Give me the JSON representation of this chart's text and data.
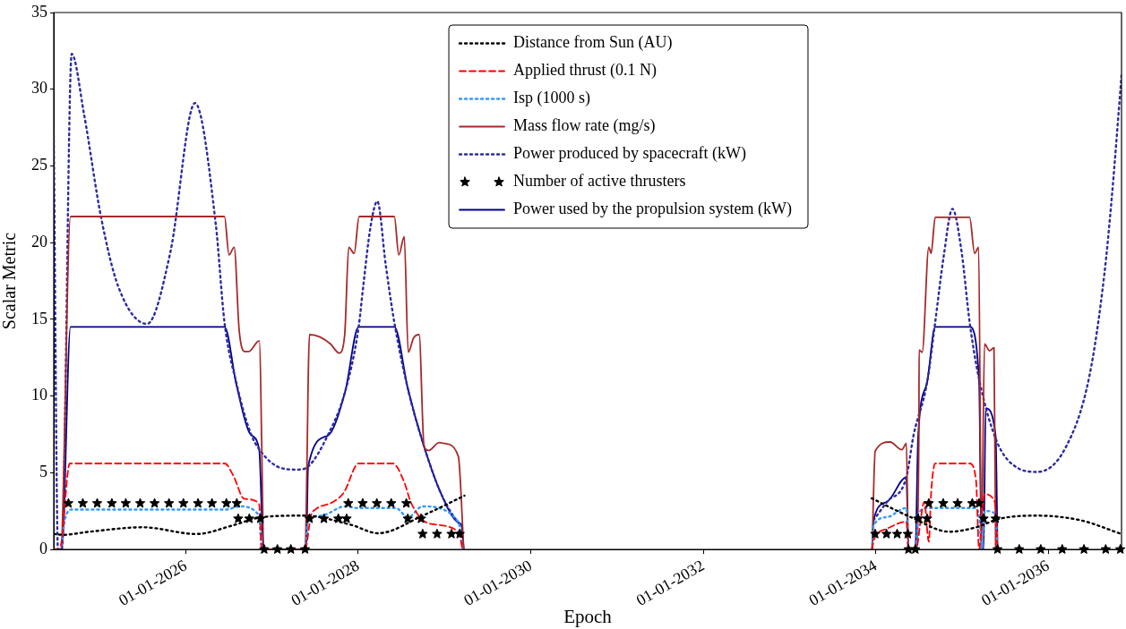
{
  "chart_data": {
    "type": "line",
    "xlabel": "Epoch",
    "ylabel": "Scalar Metric",
    "xlim": [
      "2024-06-21",
      "2036-11-06"
    ],
    "xticks": [
      {
        "value": "2026-01-01",
        "label": "01-01-2026"
      },
      {
        "value": "2028-01-01",
        "label": "01-01-2028"
      },
      {
        "value": "2030-01-01",
        "label": "01-01-2030"
      },
      {
        "value": "2032-01-01",
        "label": "01-01-2032"
      },
      {
        "value": "2034-01-01",
        "label": "01-01-2034"
      },
      {
        "value": "2036-01-01",
        "label": "01-01-2036"
      }
    ],
    "ylim": [
      0,
      35
    ],
    "yticks": [
      0,
      5,
      10,
      15,
      20,
      25,
      30,
      35
    ],
    "grid": false,
    "legend": "top",
    "series": [
      {
        "name": "Distance from Sun (AU)",
        "color": "#000000",
        "line_style": "dotted",
        "marker": "none",
        "x": [
          "2024-06-21",
          "2024-07-30",
          "2024-11-19",
          "2025-07-03",
          "2026-02-15",
          "2026-07-16",
          "2026-11-19",
          "2027-05-15",
          "2027-12-02",
          "2028-03-25",
          "2028-09-30",
          "2029-03-26",
          "2031-07-01",
          "2033-12-14",
          "2034-05-29",
          "2034-11-09",
          "2035-03-01",
          "2035-06-10",
          "2035-11-09",
          "2036-05-16",
          "2036-11-06"
        ],
        "values": [
          1.0,
          0.95,
          1.15,
          1.44,
          1.0,
          1.55,
          2.1,
          2.2,
          1.6,
          1.05,
          2.2,
          3.5,
          null,
          3.33,
          2.1,
          1.15,
          1.44,
          2.0,
          2.2,
          1.9,
          1.0
        ]
      },
      {
        "name": "Applied thrust (0.1 N)",
        "color": "#ff0000",
        "line_style": "dashed",
        "marker": "none",
        "x": [
          "2024-06-21",
          "2024-07-16",
          "2024-08-28",
          "2026-06-15",
          "2026-07-23",
          "2026-09-05",
          "2026-11-07",
          "2026-11-19",
          "2027-05-21",
          "2027-06-15",
          "2027-07-04",
          "2027-09-18",
          "2027-11-01",
          "2028-01-03",
          "2028-05-27",
          "2028-07-16",
          "2028-08-10",
          "2028-10-25",
          "2029-02-28",
          "2029-03-18",
          "2031-07-01",
          "2033-12-16",
          "2033-12-22",
          "2034-02-17",
          "2034-05-10",
          "2034-05-19",
          "2034-06-20",
          "2034-06-29",
          "2034-07-06",
          "2034-07-25",
          "2034-08-13",
          "2034-08-23",
          "2034-09-09",
          "2035-02-02",
          "2035-03-01",
          "2035-03-14",
          "2035-04-06",
          "2035-05-19",
          "2035-05-31"
        ],
        "values": [
          0,
          0,
          5.6,
          5.6,
          4.75,
          3.3,
          3.0,
          0,
          0,
          2.2,
          2.6,
          3.1,
          3.7,
          5.6,
          5.6,
          4.3,
          3.1,
          1.7,
          1.15,
          0,
          null,
          0,
          0.56,
          1.35,
          1.8,
          0,
          0,
          0.6,
          1.5,
          3.1,
          0.5,
          3.7,
          5.6,
          5.6,
          4.5,
          0,
          3.6,
          3.1,
          0
        ]
      },
      {
        "name": "Isp (1000 s)",
        "color": "#3399ff",
        "line_style": "dotted",
        "marker": "none",
        "x": [
          "2024-06-21",
          "2024-07-18",
          "2024-08-09",
          "2024-09-04",
          "2026-06-21",
          "2026-08-17",
          "2026-11-07",
          "2026-11-19",
          "2027-05-21",
          "2027-06-03",
          "2027-07-29",
          "2027-11-07",
          "2027-12-28",
          "2028-06-08",
          "2028-07-29",
          "2028-09-30",
          "2029-02-28",
          "2029-03-18",
          "2031-07-01",
          "2033-12-16",
          "2033-12-22",
          "2034-02-17",
          "2034-05-10",
          "2034-05-19",
          "2034-06-20",
          "2034-06-29",
          "2034-08-13",
          "2034-10-27",
          "2035-02-17",
          "2035-03-14",
          "2035-03-24",
          "2035-04-08",
          "2035-05-23",
          "2035-05-31"
        ],
        "values": [
          0,
          0,
          2.05,
          2.6,
          2.6,
          2.8,
          2.2,
          0,
          0,
          1.9,
          2.2,
          2.8,
          2.7,
          2.7,
          2.1,
          2.8,
          1.8,
          0,
          null,
          0,
          1.55,
          2.1,
          2.7,
          0,
          0,
          2.3,
          2.7,
          2.7,
          2.7,
          2.3,
          0,
          2.5,
          2.3,
          0
        ]
      },
      {
        "name": "Mass flow rate (mg/s)",
        "color": "#a52a2a",
        "line_style": "solid",
        "marker": "none",
        "x": [
          "2024-06-21",
          "2024-07-20",
          "2024-08-31",
          "2026-06-14",
          "2026-07-03",
          "2026-07-25",
          "2026-08-15",
          "2026-09-07",
          "2026-09-25",
          "2026-11-08",
          "2026-11-29",
          "2027-05-21",
          "2027-06-09",
          "2027-07-23",
          "2027-09-05",
          "2027-10-13",
          "2027-11-05",
          "2027-11-22",
          "2027-12-15",
          "2028-01-05",
          "2028-06-02",
          "2028-06-21",
          "2028-07-14",
          "2028-07-31",
          "2028-08-23",
          "2028-09-15",
          "2028-10-06",
          "2028-10-25",
          "2028-12-09",
          "2029-01-02",
          "2029-02-28",
          "2029-03-23",
          "2031-07-01",
          "2033-12-16",
          "2033-12-29",
          "2034-03-02",
          "2034-04-21",
          "2034-05-10",
          "2034-05-19",
          "2034-06-20",
          "2034-07-02",
          "2034-07-03",
          "2034-07-16",
          "2034-08-13",
          "2034-08-23",
          "2034-09-09",
          "2035-02-02",
          "2035-02-23",
          "2035-03-12",
          "2035-03-24",
          "2035-04-06",
          "2035-04-27",
          "2035-05-16",
          "2035-05-23"
        ],
        "values": [
          0,
          0,
          21.7,
          21.7,
          19.2,
          19.7,
          14.3,
          12.9,
          12.9,
          13.6,
          0,
          0,
          14.0,
          13.85,
          13.4,
          12.8,
          14.0,
          19.7,
          19.3,
          21.7,
          21.7,
          19.2,
          20.4,
          12.85,
          13.8,
          14.0,
          6.7,
          6.45,
          6.96,
          6.9,
          6.06,
          0,
          null,
          0,
          6.4,
          7.0,
          6.5,
          6.9,
          0,
          0,
          7.4,
          13.0,
          12.85,
          19.7,
          19.3,
          21.65,
          21.65,
          19.3,
          19.7,
          0,
          13.4,
          12.95,
          13.15,
          0
        ]
      },
      {
        "name": "Power produced by spacecraft (kW)",
        "color": "#2b2ba0",
        "line_style": "dotted",
        "marker": "none",
        "x": [
          "2024-06-21",
          "2024-07-09",
          "2024-07-25",
          "2024-09-05",
          "2024-10-27",
          "2025-01-08",
          "2025-03-22",
          "2025-07-21",
          "2025-10-28",
          "2026-02-09",
          "2026-05-08",
          "2026-06-14",
          "2026-08-04",
          "2026-10-02",
          "2026-11-14",
          "2027-02-09",
          "2027-04-18",
          "2027-06-03",
          "2027-08-24",
          "2027-11-07",
          "2028-01-03",
          "2028-01-22",
          "2028-02-22",
          "2028-03-22",
          "2028-04-27",
          "2028-06-02",
          "2028-07-29",
          "2028-09-30",
          "2028-12-15",
          "2029-02-28",
          "2029-03-13",
          "2031-07-01",
          "2033-12-22",
          "2034-02-17",
          "2034-05-10",
          "2034-06-09",
          "2034-08-06",
          "2034-09-09",
          "2034-10-15",
          "2034-11-21",
          "2034-12-29",
          "2035-02-02",
          "2035-03-14",
          "2035-05-29",
          "2035-08-25",
          "2035-11-15",
          "2036-03-13",
          "2036-06-23",
          "2036-08-25",
          "2036-09-25",
          "2036-11-06"
        ],
        "values": [
          27.0,
          0,
          0,
          32.3,
          28.4,
          21.6,
          17.1,
          14.7,
          19.4,
          29.1,
          21.2,
          14.8,
          10.8,
          7.6,
          6.4,
          5.3,
          5.2,
          5.4,
          7.4,
          10.3,
          14.5,
          17.1,
          21.0,
          22.7,
          18.5,
          14.8,
          10.5,
          7.0,
          3.7,
          1.75,
          1.6,
          null,
          1.9,
          3.1,
          4.7,
          7.4,
          10.9,
          14.8,
          19.1,
          22.2,
          19.5,
          14.8,
          11.1,
          7.0,
          5.3,
          5.05,
          6.6,
          11.3,
          17.9,
          22.8,
          30.9
        ]
      },
      {
        "name": "Number of active thrusters",
        "color": "#000000",
        "type": "scatter",
        "marker": "star",
        "x": [
          "2024-08-22",
          "2024-10-22",
          "2024-12-22",
          "2025-02-22",
          "2025-04-22",
          "2025-06-22",
          "2025-08-22",
          "2025-10-22",
          "2025-12-22",
          "2026-02-22",
          "2026-04-22",
          "2026-06-22",
          "2026-08-05",
          "2026-08-11",
          "2026-09-27",
          "2026-11-13",
          "2026-11-29",
          "2027-01-24",
          "2027-03-22",
          "2027-05-21",
          "2027-06-09",
          "2027-08-09",
          "2027-10-09",
          "2027-11-13",
          "2027-11-20",
          "2028-01-20",
          "2028-03-20",
          "2028-05-20",
          "2028-07-23",
          "2028-07-29",
          "2028-09-23",
          "2028-09-30",
          "2028-11-30",
          "2029-01-30",
          "2029-03-06",
          "2033-12-29",
          "2034-02-15",
          "2034-04-01",
          "2034-05-16",
          "2034-05-19",
          "2034-06-17",
          "2034-06-29",
          "2034-08-06",
          "2034-08-13",
          "2034-10-13",
          "2034-12-13",
          "2035-02-13",
          "2035-03-14",
          "2035-04-02",
          "2035-05-23",
          "2035-05-31",
          "2035-08-31",
          "2035-11-30",
          "2036-02-29",
          "2036-05-31",
          "2036-08-31",
          "2036-11-01"
        ],
        "values": [
          3,
          3,
          3,
          3,
          3,
          3,
          3,
          3,
          3,
          3,
          3,
          3,
          3,
          2,
          2,
          2,
          0,
          0,
          0,
          0,
          2,
          2,
          2,
          2,
          3,
          3,
          3,
          3,
          3,
          2,
          2,
          1,
          1,
          1,
          1,
          1,
          1,
          1,
          1,
          0,
          0,
          2,
          2,
          3,
          3,
          3,
          3,
          3,
          2,
          2,
          0,
          0,
          0,
          0,
          0,
          0,
          0
        ]
      },
      {
        "name": "Power used by the propulsion system (kW)",
        "color": "#00008b",
        "line_style": "solid",
        "marker": "none",
        "x": [
          "2024-06-21",
          "2024-07-25",
          "2024-08-31",
          "2026-06-14",
          "2026-08-04",
          "2026-10-02",
          "2026-11-08",
          "2026-11-26",
          "2027-05-26",
          "2027-06-03",
          "2027-08-24",
          "2027-11-07",
          "2028-01-03",
          "2028-06-02",
          "2028-07-29",
          "2028-09-30",
          "2028-12-15",
          "2029-02-28",
          "2029-03-13",
          "2029-03-23",
          "2031-07-01",
          "2033-12-16",
          "2033-12-22",
          "2034-02-17",
          "2034-05-10",
          "2034-05-19",
          "2034-06-17",
          "2034-06-29",
          "2034-08-06",
          "2034-09-09",
          "2035-02-02",
          "2035-03-14",
          "2035-03-24",
          "2035-04-02",
          "2035-04-11",
          "2035-05-23",
          "2035-05-31"
        ],
        "values": [
          0,
          0,
          14.5,
          14.5,
          10.7,
          7.5,
          6.5,
          0,
          0,
          5.4,
          7.4,
          10.3,
          14.5,
          14.5,
          10.5,
          7.0,
          3.7,
          1.75,
          1.6,
          0,
          null,
          0,
          1.9,
          3.1,
          4.7,
          0,
          0,
          7.4,
          10.9,
          14.5,
          14.5,
          11.0,
          0,
          0,
          9.2,
          7.4,
          0
        ]
      }
    ]
  }
}
